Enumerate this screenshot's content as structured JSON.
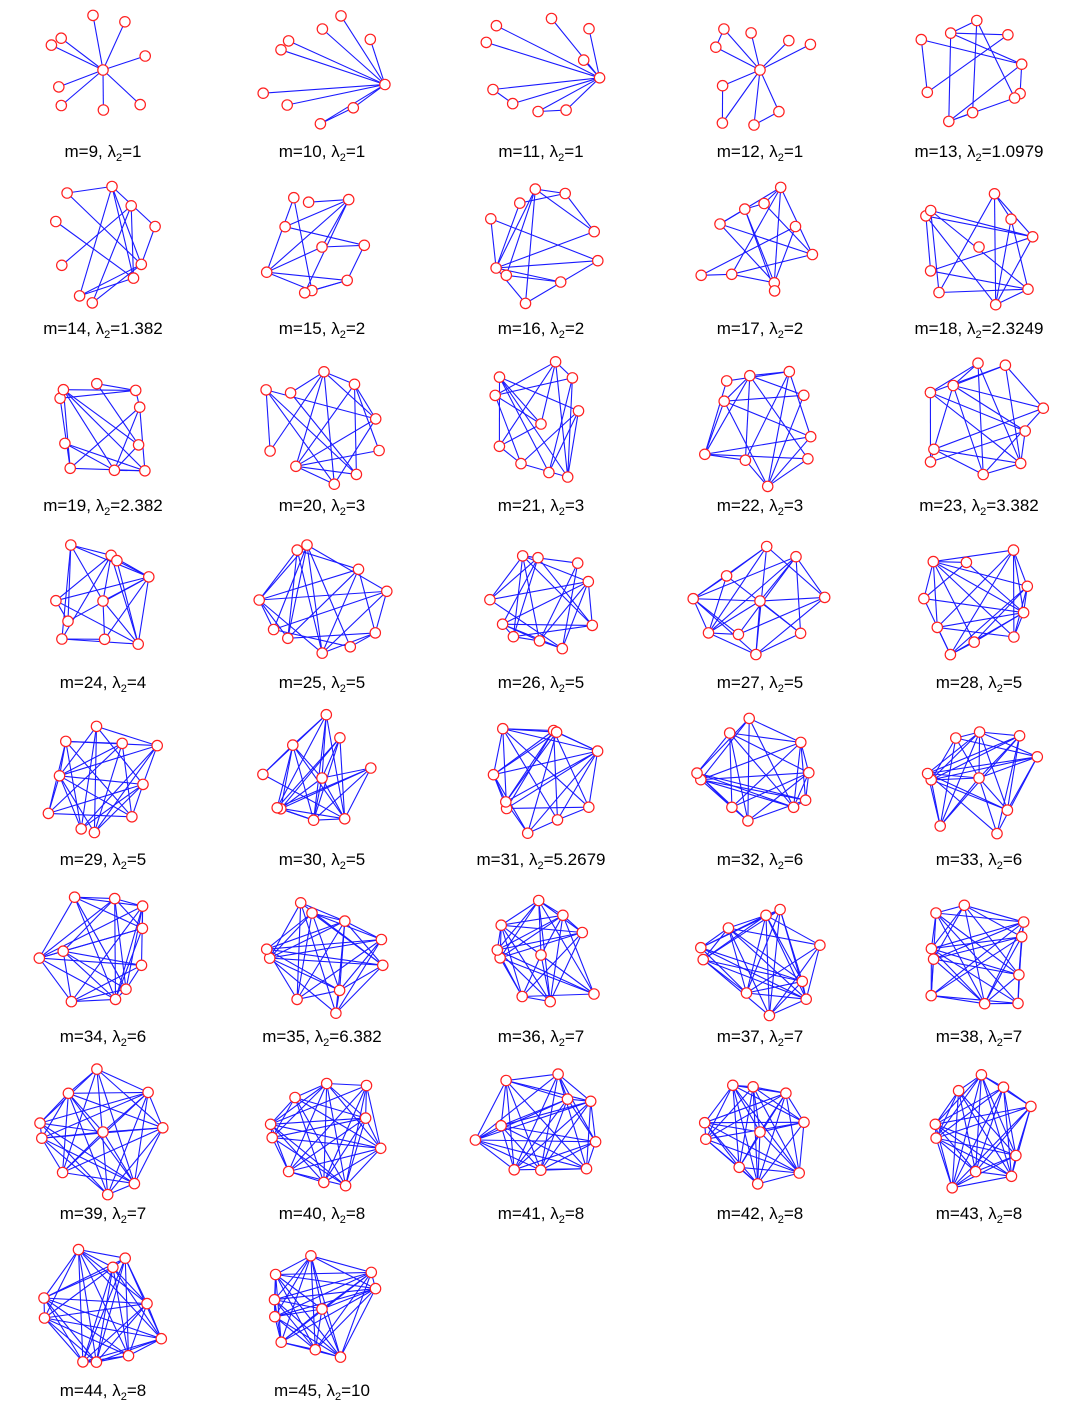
{
  "figure": {
    "lambda_symbol": "λ",
    "edge_color": "#1a1aff",
    "node_color": "#ff2020",
    "graphs": [
      {
        "m": 9,
        "lambda2": "1",
        "label_m": "m=9,",
        "label_value": "=1"
      },
      {
        "m": 10,
        "lambda2": "1",
        "label_m": "m=10,",
        "label_value": "=1"
      },
      {
        "m": 11,
        "lambda2": "1",
        "label_m": "m=11,",
        "label_value": "=1"
      },
      {
        "m": 12,
        "lambda2": "1",
        "label_m": "m=12,",
        "label_value": "=1"
      },
      {
        "m": 13,
        "lambda2": "1.0979",
        "label_m": "m=13,",
        "label_value": "=1.0979"
      },
      {
        "m": 14,
        "lambda2": "1.382",
        "label_m": "m=14,",
        "label_value": "=1.382"
      },
      {
        "m": 15,
        "lambda2": "2",
        "label_m": "m=15,",
        "label_value": "=2"
      },
      {
        "m": 16,
        "lambda2": "2",
        "label_m": "m=16,",
        "label_value": "=2"
      },
      {
        "m": 17,
        "lambda2": "2",
        "label_m": "m=17,",
        "label_value": "=2"
      },
      {
        "m": 18,
        "lambda2": "2.3249",
        "label_m": "m=18,",
        "label_value": "=2.3249"
      },
      {
        "m": 19,
        "lambda2": "2.382",
        "label_m": "m=19,",
        "label_value": "=2.382"
      },
      {
        "m": 20,
        "lambda2": "3",
        "label_m": "m=20,",
        "label_value": "=3"
      },
      {
        "m": 21,
        "lambda2": "3",
        "label_m": "m=21,",
        "label_value": "=3"
      },
      {
        "m": 22,
        "lambda2": "3",
        "label_m": "m=22,",
        "label_value": "=3"
      },
      {
        "m": 23,
        "lambda2": "3.382",
        "label_m": "m=23,",
        "label_value": "=3.382"
      },
      {
        "m": 24,
        "lambda2": "4",
        "label_m": "m=24,",
        "label_value": "=4"
      },
      {
        "m": 25,
        "lambda2": "5",
        "label_m": "m=25,",
        "label_value": "=5"
      },
      {
        "m": 26,
        "lambda2": "5",
        "label_m": "m=26,",
        "label_value": "=5"
      },
      {
        "m": 27,
        "lambda2": "5",
        "label_m": "m=27,",
        "label_value": "=5"
      },
      {
        "m": 28,
        "lambda2": "5",
        "label_m": "m=28,",
        "label_value": "=5"
      },
      {
        "m": 29,
        "lambda2": "5",
        "label_m": "m=29,",
        "label_value": "=5"
      },
      {
        "m": 30,
        "lambda2": "5",
        "label_m": "m=30,",
        "label_value": "=5"
      },
      {
        "m": 31,
        "lambda2": "5.2679",
        "label_m": "m=31,",
        "label_value": "=5.2679"
      },
      {
        "m": 32,
        "lambda2": "6",
        "label_m": "m=32,",
        "label_value": "=6"
      },
      {
        "m": 33,
        "lambda2": "6",
        "label_m": "m=33,",
        "label_value": "=6"
      },
      {
        "m": 34,
        "lambda2": "6",
        "label_m": "m=34,",
        "label_value": "=6"
      },
      {
        "m": 35,
        "lambda2": "6.382",
        "label_m": "m=35,",
        "label_value": "=6.382"
      },
      {
        "m": 36,
        "lambda2": "7",
        "label_m": "m=36,",
        "label_value": "=7"
      },
      {
        "m": 37,
        "lambda2": "7",
        "label_m": "m=37,",
        "label_value": "=7"
      },
      {
        "m": 38,
        "lambda2": "7",
        "label_m": "m=38,",
        "label_value": "=7"
      },
      {
        "m": 39,
        "lambda2": "7",
        "label_m": "m=39,",
        "label_value": "=7"
      },
      {
        "m": 40,
        "lambda2": "8",
        "label_m": "m=40,",
        "label_value": "=8"
      },
      {
        "m": 41,
        "lambda2": "8",
        "label_m": "m=41,",
        "label_value": "=8"
      },
      {
        "m": 42,
        "lambda2": "8",
        "label_m": "m=42,",
        "label_value": "=8"
      },
      {
        "m": 43,
        "lambda2": "8",
        "label_m": "m=43,",
        "label_value": "=8"
      },
      {
        "m": 44,
        "lambda2": "8",
        "label_m": "m=44,",
        "label_value": "=8"
      },
      {
        "m": 45,
        "lambda2": "10",
        "label_m": "m=45,",
        "label_value": "=10"
      }
    ]
  }
}
